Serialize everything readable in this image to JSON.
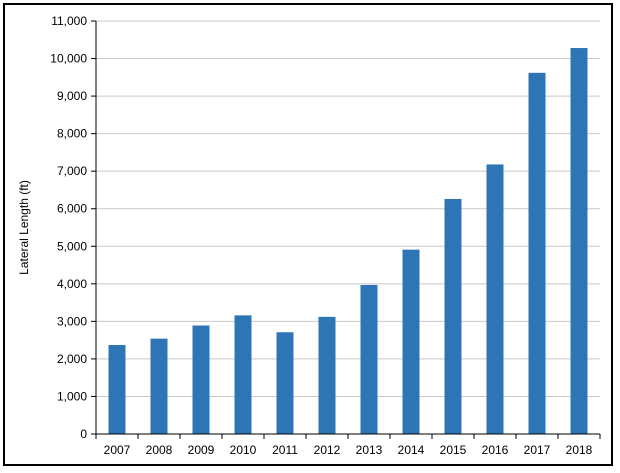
{
  "chart_data": {
    "type": "bar",
    "title": "",
    "xlabel": "",
    "ylabel": "Lateral Length (ft)",
    "categories": [
      "2007",
      "2008",
      "2009",
      "2010",
      "2011",
      "2012",
      "2013",
      "2014",
      "2015",
      "2016",
      "2017",
      "2018"
    ],
    "values": [
      2370,
      2540,
      2890,
      3160,
      2710,
      3120,
      3970,
      4910,
      6260,
      7180,
      9620,
      10280
    ],
    "ylim": [
      0,
      11000
    ],
    "yticks": [
      0,
      1000,
      2000,
      3000,
      4000,
      5000,
      6000,
      7000,
      8000,
      9000,
      10000,
      11000
    ],
    "ytick_labels": [
      "0",
      "1,000",
      "2,000",
      "3,000",
      "4,000",
      "5,000",
      "6,000",
      "7,000",
      "8,000",
      "9,000",
      "10,000",
      "11,000"
    ],
    "grid": true,
    "legend": "none",
    "bar_color": "#2e75b6",
    "grid_color": "#c8c8c8"
  }
}
